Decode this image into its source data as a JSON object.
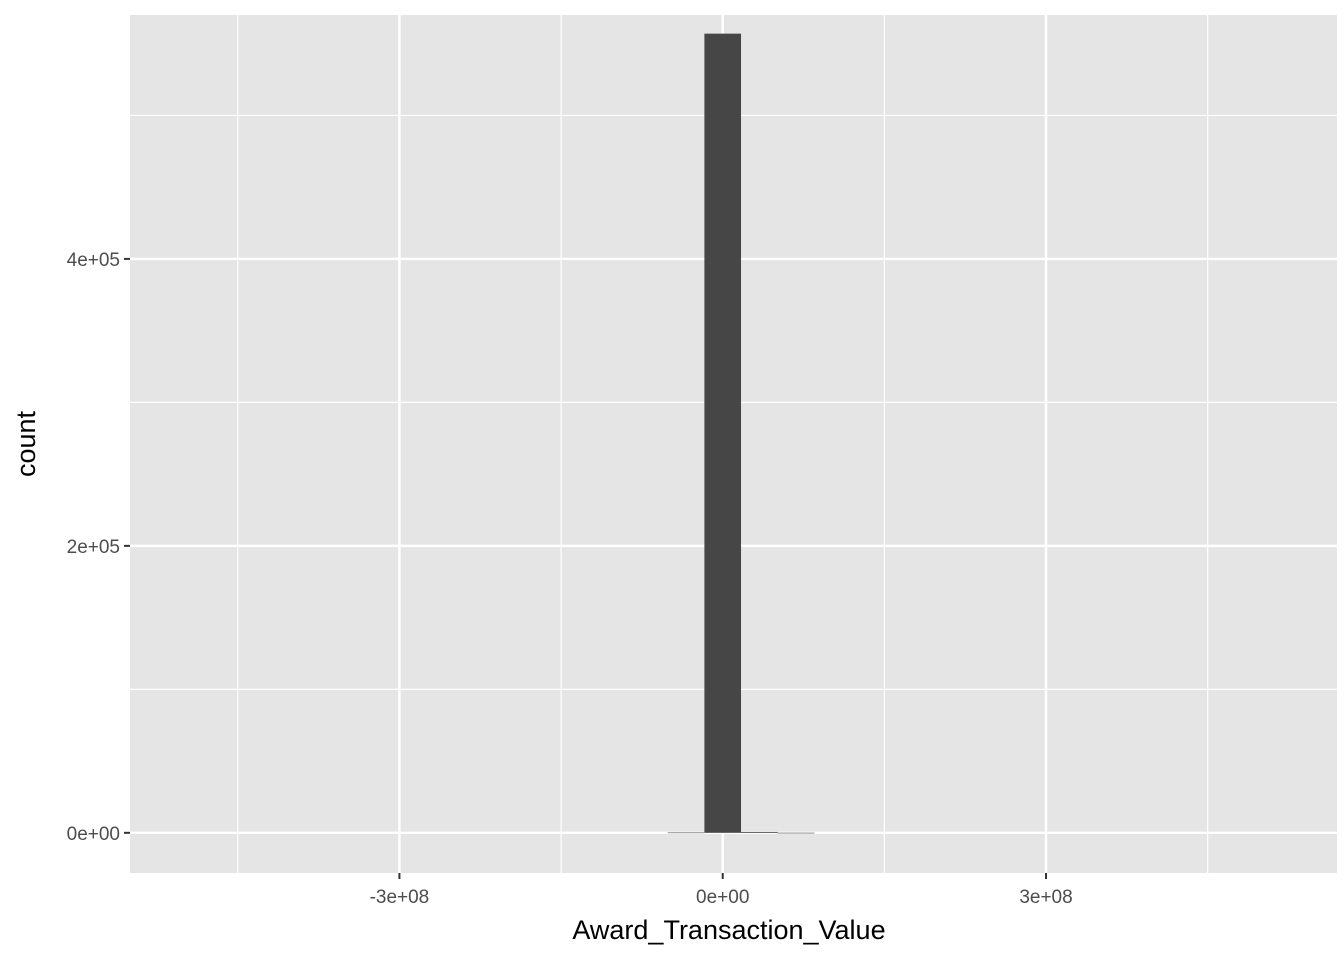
{
  "chart_data": {
    "type": "bar",
    "xlabel": "Award_Transaction_Value",
    "ylabel": "count",
    "xlim": [
      -550000000,
      570000000
    ],
    "ylim": [
      -28000,
      570000
    ],
    "x_ticks": [
      {
        "value": -300000000,
        "label": "-3e+08"
      },
      {
        "value": 0,
        "label": "0e+00"
      },
      {
        "value": 300000000,
        "label": "3e+08"
      }
    ],
    "x_minor_ticks": [
      -450000000,
      -150000000,
      150000000,
      450000000
    ],
    "y_ticks": [
      {
        "value": 0,
        "label": "0e+00"
      },
      {
        "value": 200000,
        "label": "2e+05"
      },
      {
        "value": 400000,
        "label": "4e+05"
      }
    ],
    "y_minor_ticks": [
      100000,
      300000,
      500000
    ],
    "bins": [
      {
        "x0": -51000000,
        "x1": -17000000,
        "count": 200
      },
      {
        "x0": -17000000,
        "x1": 17000000,
        "count": 557000
      },
      {
        "x0": 17000000,
        "x1": 51000000,
        "count": 600
      },
      {
        "x0": 51000000,
        "x1": 85000000,
        "count": 50
      }
    ],
    "grid": true,
    "colors": {
      "panel": "#e5e5e5",
      "grid": "#ffffff",
      "bar": "#464646",
      "tick": "#333333"
    }
  }
}
